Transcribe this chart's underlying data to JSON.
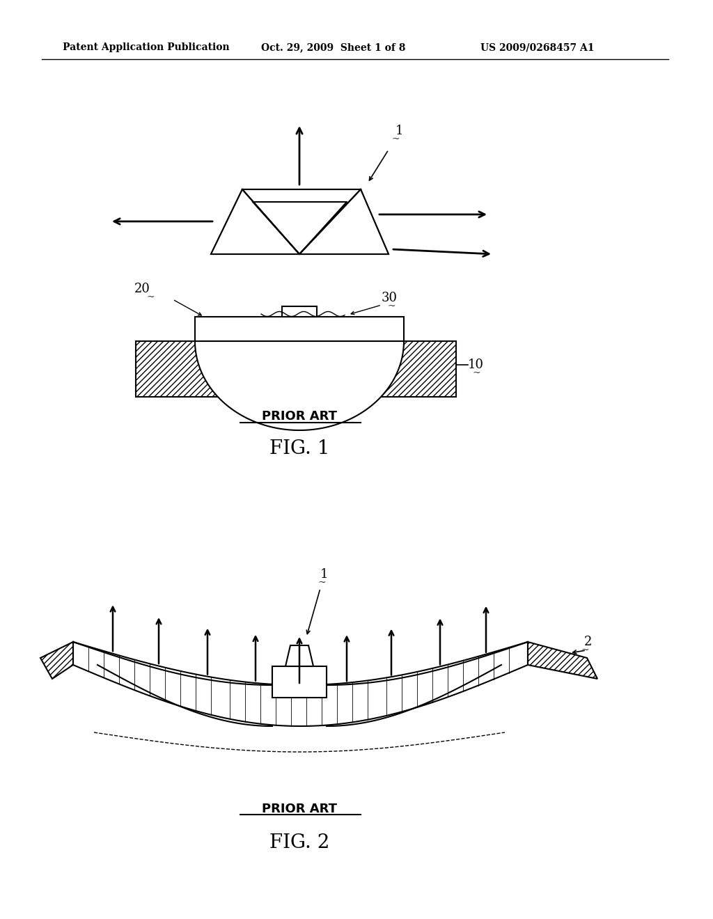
{
  "bg_color": "#ffffff",
  "header_left": "Patent Application Publication",
  "header_mid": "Oct. 29, 2009  Sheet 1 of 8",
  "header_right": "US 2009/0268457 A1",
  "fig1_label": "FIG. 1",
  "fig2_label": "FIG. 2",
  "prior_art": "PRIOR ART",
  "label_1": "1",
  "label_2": "2",
  "label_10": "10",
  "label_20": "20",
  "label_30": "30",
  "line_color": "#000000"
}
